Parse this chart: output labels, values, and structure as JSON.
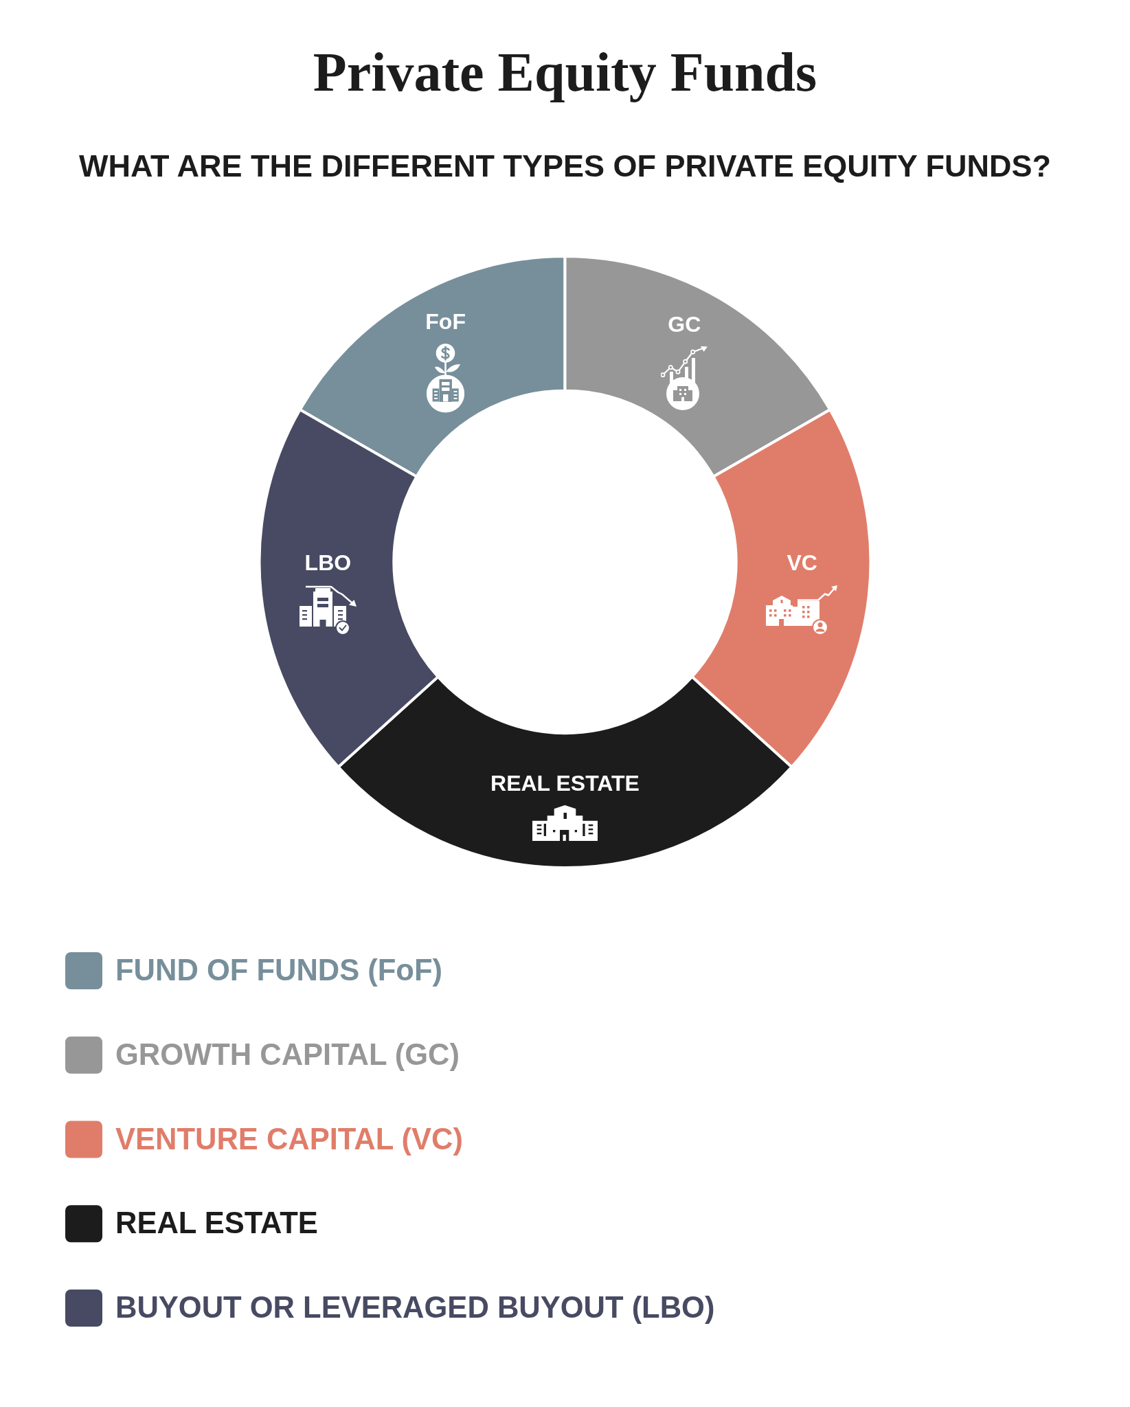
{
  "chart_data": {
    "type": "donut",
    "title": "Private Equity Funds",
    "subtitle": "WHAT ARE THE DIFFERENT TYPES OF PRIVATE EQUITY FUNDS?",
    "categories": [
      "FUND OF FUNDS (FoF)",
      "GROWTH CAPITAL (GC)",
      "VENTURE CAPITAL (VC)",
      "REAL ESTATE",
      "BUYOUT OR LEVERAGED BUYOUT (LBO)"
    ],
    "values": [
      16.7,
      16.7,
      20,
      26.6,
      20
    ],
    "colors": [
      "#778f9b",
      "#979797",
      "#e07d6a",
      "#1c1c1c",
      "#474a62"
    ],
    "value_labels": [
      "FoF",
      "GC",
      "VC",
      "REAL ESTATE",
      "LBO"
    ],
    "legend": "bottom"
  }
}
